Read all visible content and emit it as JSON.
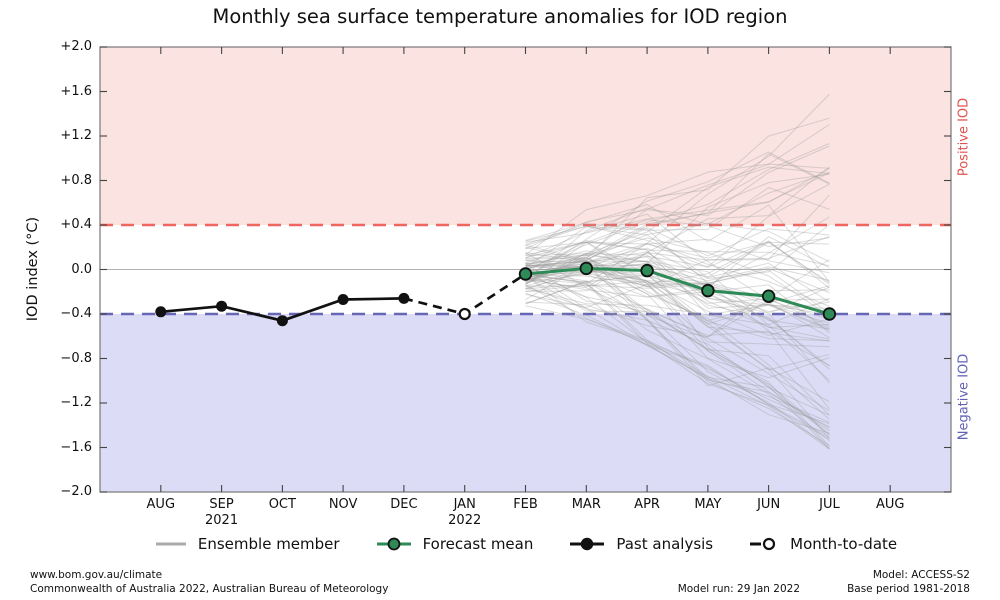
{
  "title": "Monthly sea surface temperature anomalies for IOD region",
  "chart_data": {
    "type": "line",
    "title": "Monthly sea surface temperature anomalies for IOD region",
    "ylabel": "IOD index (°C)",
    "ylim": [
      -2.0,
      2.0
    ],
    "zero_line": true,
    "yticks": [
      {
        "value": 2.0,
        "label": "+2.0"
      },
      {
        "value": 1.6,
        "label": "+1.6"
      },
      {
        "value": 1.2,
        "label": "+1.2"
      },
      {
        "value": 0.8,
        "label": "+0.8"
      },
      {
        "value": 0.4,
        "label": "+0.4"
      },
      {
        "value": 0.0,
        "label": "0.0"
      },
      {
        "value": -0.4,
        "label": "−0.4"
      },
      {
        "value": -0.8,
        "label": "−0.8"
      },
      {
        "value": -1.2,
        "label": "−1.2"
      },
      {
        "value": -1.6,
        "label": "−1.6"
      },
      {
        "value": -2.0,
        "label": "−2.0"
      }
    ],
    "x_axis": {
      "months": [
        {
          "index": 0,
          "label": "AUG"
        },
        {
          "index": 1,
          "label": "SEP"
        },
        {
          "index": 2,
          "label": "OCT"
        },
        {
          "index": 3,
          "label": "NOV"
        },
        {
          "index": 4,
          "label": "DEC"
        },
        {
          "index": 5,
          "label": "JAN"
        },
        {
          "index": 6,
          "label": "FEB"
        },
        {
          "index": 7,
          "label": "MAR"
        },
        {
          "index": 8,
          "label": "APR"
        },
        {
          "index": 9,
          "label": "MAY"
        },
        {
          "index": 10,
          "label": "JUN"
        },
        {
          "index": 11,
          "label": "JUL"
        },
        {
          "index": 12,
          "label": "AUG"
        }
      ],
      "year_labels": [
        {
          "label": "2021",
          "month_index": 1
        },
        {
          "label": "2022",
          "month_index": 5
        }
      ]
    },
    "regions": {
      "positive": {
        "label": "Positive IOD",
        "threshold": 0.4,
        "band_color": "#fae3e1",
        "line_color": "#ef6661",
        "text_color": "#e0534e"
      },
      "negative": {
        "label": "Negative IOD",
        "threshold": -0.4,
        "band_color": "#dcdcf6",
        "line_color": "#6767b4",
        "text_color": "#6161b5"
      }
    },
    "series": {
      "past_analysis": {
        "name": "Past analysis",
        "color": "#111111",
        "months": [
          "AUG 2021",
          "SEP 2021",
          "OCT 2021",
          "NOV 2021",
          "DEC 2021"
        ],
        "month_indices": [
          0,
          1,
          2,
          3,
          4
        ],
        "values": [
          -0.38,
          -0.33,
          -0.46,
          -0.27,
          -0.26
        ]
      },
      "month_to_date": {
        "name": "Month-to-date",
        "color": "#111111",
        "month_indices": [
          4,
          5,
          6
        ],
        "values": [
          -0.26,
          -0.4,
          -0.04
        ],
        "marker_month": "JAN 2022",
        "marker_month_index": 5,
        "marker_value": -0.4
      },
      "forecast_mean": {
        "name": "Forecast mean",
        "color": "#2e8b57",
        "months": [
          "FEB 2022",
          "MAR 2022",
          "APR 2022",
          "MAY 2022",
          "JUN 2022",
          "JUL 2022"
        ],
        "month_indices": [
          6,
          7,
          8,
          9,
          10,
          11
        ],
        "values": [
          -0.04,
          0.01,
          -0.01,
          -0.19,
          -0.24,
          -0.4
        ]
      },
      "ensemble": {
        "name": "Ensemble member",
        "color": "#9a9a9a",
        "count": 90,
        "month_indices": [
          6,
          7,
          8,
          9,
          10,
          11
        ],
        "envelope_min": [
          -0.33,
          -0.5,
          -0.72,
          -1.05,
          -1.35,
          -1.62
        ],
        "envelope_max": [
          0.42,
          0.65,
          0.67,
          0.95,
          1.35,
          1.93
        ]
      }
    }
  },
  "legend": {
    "items": [
      {
        "label": "Ensemble member"
      },
      {
        "label": "Forecast mean"
      },
      {
        "label": "Past analysis"
      },
      {
        "label": "Month-to-date"
      }
    ]
  },
  "footer": {
    "website": "www.bom.gov.au/climate",
    "copyright": "Commonwealth of Australia 2022, Australian Bureau of Meteorology",
    "model_run": "Model run: 29 Jan 2022",
    "model": "Model: ACCESS-S2",
    "base_period": "Base period 1981-2018"
  }
}
